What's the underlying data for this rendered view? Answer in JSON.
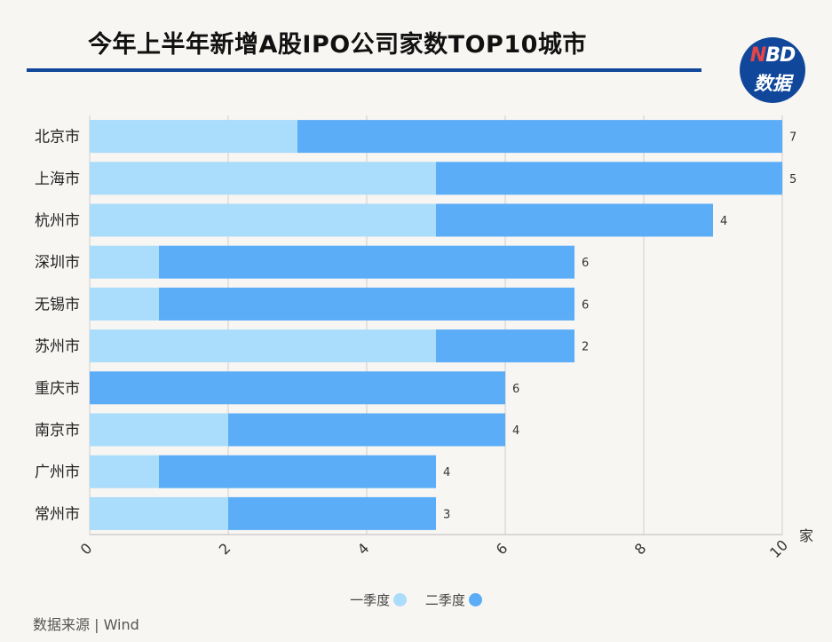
{
  "header": {
    "title": "今年上半年新增A股IPO公司家数TOP10城市"
  },
  "logo": {
    "line1_n": "N",
    "line1_rest": "BD",
    "line2": "数据"
  },
  "source": "数据来源 | Wind",
  "colors": {
    "q1": "#aadcfb",
    "q2": "#5aadf6",
    "grid": "#cfcfcf",
    "rule": "#10479a"
  },
  "chart_data": {
    "type": "bar",
    "orientation": "horizontal",
    "stacked": true,
    "categories": [
      "北京市",
      "上海市",
      "杭州市",
      "深圳市",
      "无锡市",
      "苏州市",
      "重庆市",
      "南京市",
      "广州市",
      "常州市"
    ],
    "series": [
      {
        "name": "一季度",
        "values": [
          3,
          5,
          5,
          1,
          1,
          5,
          0,
          2,
          1,
          2
        ]
      },
      {
        "name": "二季度",
        "values": [
          7,
          5,
          4,
          6,
          6,
          2,
          6,
          4,
          4,
          3
        ]
      }
    ],
    "xlim": [
      0,
      10
    ],
    "xticks": [
      0,
      2,
      4,
      6,
      8,
      10
    ],
    "xunit": "家",
    "grid": true,
    "legend": "bottom-center"
  }
}
